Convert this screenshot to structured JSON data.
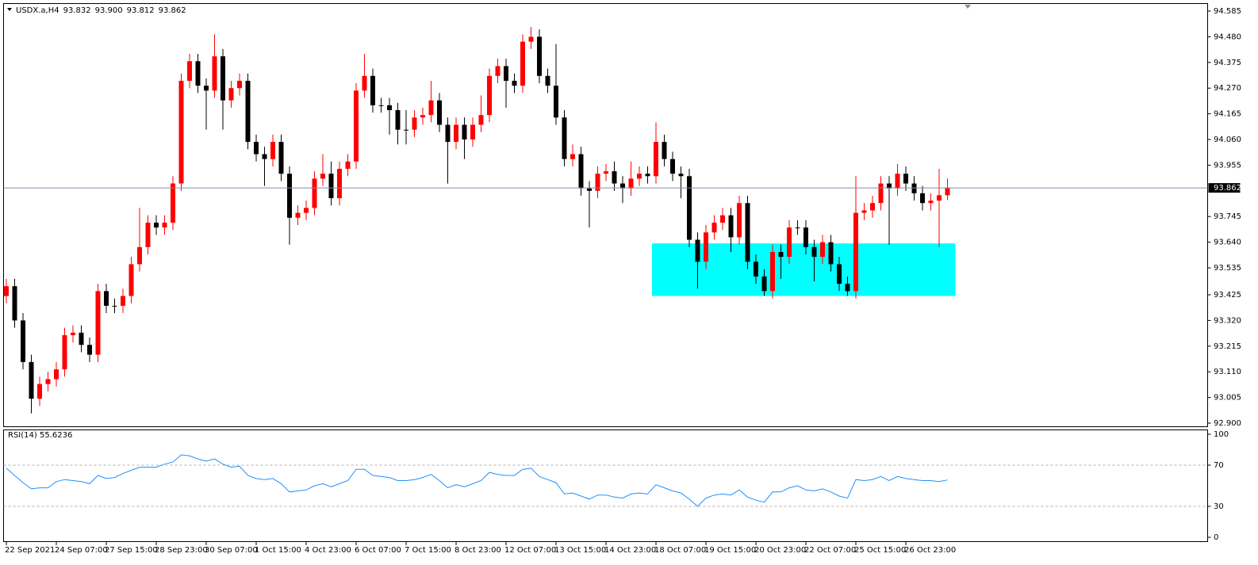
{
  "chart_data": [
    {
      "type": "candlestick",
      "title": "USDX.a,H4",
      "ohlc_label": [
        "93.832",
        "93.900",
        "93.812",
        "93.862"
      ],
      "up_color": "#ff0000",
      "down_color": "#000000",
      "price_line_color": "#7d8fa6",
      "categories": [
        "22 Sep 2021",
        null,
        null,
        null,
        null,
        null,
        "24 Sep 07:00",
        null,
        null,
        null,
        null,
        null,
        "27 Sep 15:00",
        null,
        null,
        null,
        null,
        null,
        "28 Sep 23:00",
        null,
        null,
        null,
        null,
        null,
        "30 Sep 07:00",
        null,
        null,
        null,
        null,
        null,
        "1 Oct 15:00",
        null,
        null,
        null,
        null,
        null,
        "4 Oct 23:00",
        null,
        null,
        null,
        null,
        null,
        "6 Oct 07:00",
        null,
        null,
        null,
        null,
        null,
        "7 Oct 15:00",
        null,
        null,
        null,
        null,
        null,
        "8 Oct 23:00",
        null,
        null,
        null,
        null,
        null,
        "12 Oct 07:00",
        null,
        null,
        null,
        null,
        null,
        "13 Oct 15:00",
        null,
        null,
        null,
        null,
        null,
        "14 Oct 23:00",
        null,
        null,
        null,
        null,
        null,
        "18 Oct 07:00",
        null,
        null,
        null,
        null,
        null,
        "19 Oct 15:00",
        null,
        null,
        null,
        null,
        null,
        "20 Oct 23:00",
        null,
        null,
        null,
        null,
        null,
        "22 Oct 07:00",
        null,
        null,
        null,
        null,
        null,
        "25 Oct 15:00",
        null,
        null,
        null,
        null,
        null,
        "26 Oct 23:00",
        null,
        null,
        null,
        null,
        null
      ],
      "open": [
        93.42,
        93.46,
        93.32,
        93.15,
        93.0,
        93.06,
        93.08,
        93.12,
        93.26,
        93.27,
        93.22,
        93.18,
        93.44,
        93.38,
        93.38,
        93.42,
        93.55,
        93.62,
        93.72,
        93.7,
        93.72,
        93.88,
        94.3,
        94.38,
        94.28,
        94.26,
        94.4,
        94.22,
        94.27,
        94.3,
        94.05,
        94.0,
        93.98,
        94.05,
        93.92,
        93.74,
        93.76,
        93.78,
        93.9,
        93.92,
        93.82,
        93.94,
        93.97,
        94.26,
        94.32,
        94.2,
        94.2,
        94.18,
        94.1,
        94.1,
        94.15,
        94.16,
        94.22,
        94.12,
        94.05,
        94.12,
        94.06,
        94.12,
        94.16,
        94.32,
        94.36,
        94.3,
        94.28,
        94.46,
        94.48,
        94.32,
        94.28,
        94.15,
        93.98,
        94.0,
        93.86,
        93.85,
        93.92,
        93.93,
        93.88,
        93.86,
        93.9,
        93.92,
        93.91,
        94.05,
        93.98,
        93.92,
        93.91,
        93.65,
        93.56,
        93.68,
        93.72,
        93.75,
        93.66,
        93.8,
        93.56,
        93.5,
        93.44,
        93.6,
        93.58,
        93.7,
        93.7,
        93.62,
        93.58,
        93.64,
        93.55,
        93.47,
        93.44,
        93.76,
        93.77,
        93.8,
        93.88,
        93.86,
        93.92,
        93.88,
        93.84,
        93.8,
        93.81,
        93.832
      ],
      "high": [
        93.49,
        93.49,
        93.35,
        93.18,
        93.09,
        93.11,
        93.15,
        93.29,
        93.3,
        93.3,
        93.25,
        93.47,
        93.47,
        93.41,
        93.45,
        93.58,
        93.78,
        93.75,
        93.75,
        93.75,
        93.91,
        94.33,
        94.41,
        94.41,
        94.31,
        94.49,
        94.43,
        94.3,
        94.33,
        94.33,
        94.08,
        94.03,
        94.08,
        94.08,
        93.95,
        93.79,
        93.81,
        93.93,
        94.0,
        93.97,
        93.97,
        94.0,
        94.29,
        94.41,
        94.35,
        94.23,
        94.23,
        94.21,
        94.18,
        94.18,
        94.19,
        94.3,
        94.25,
        94.15,
        94.15,
        94.15,
        94.15,
        94.24,
        94.35,
        94.39,
        94.39,
        94.33,
        94.49,
        94.52,
        94.51,
        94.35,
        94.45,
        94.18,
        94.04,
        94.03,
        93.89,
        93.95,
        93.96,
        93.97,
        93.91,
        93.97,
        93.95,
        93.95,
        94.13,
        94.08,
        94.01,
        93.95,
        93.94,
        93.68,
        93.71,
        93.75,
        93.78,
        93.78,
        93.83,
        93.83,
        93.59,
        93.53,
        93.63,
        93.63,
        93.73,
        93.73,
        93.73,
        93.65,
        93.67,
        93.67,
        93.58,
        93.5,
        93.91,
        93.8,
        93.83,
        93.91,
        93.91,
        93.96,
        93.95,
        93.91,
        93.87,
        93.84,
        93.94,
        93.9
      ],
      "low": [
        93.39,
        93.29,
        93.12,
        92.94,
        92.97,
        93.03,
        93.05,
        93.09,
        93.23,
        93.19,
        93.15,
        93.15,
        93.35,
        93.35,
        93.35,
        93.39,
        93.52,
        93.59,
        93.67,
        93.67,
        93.69,
        93.85,
        94.27,
        94.25,
        94.1,
        94.23,
        94.1,
        94.19,
        94.24,
        94.02,
        93.97,
        93.87,
        93.95,
        93.89,
        93.63,
        93.71,
        93.73,
        93.75,
        93.87,
        93.79,
        93.79,
        93.91,
        93.94,
        94.23,
        94.17,
        94.17,
        94.08,
        94.04,
        94.04,
        94.07,
        94.12,
        94.13,
        94.09,
        93.88,
        94.02,
        93.98,
        94.03,
        94.09,
        94.13,
        94.29,
        94.19,
        94.25,
        94.25,
        94.43,
        94.29,
        94.25,
        94.12,
        93.95,
        93.95,
        93.83,
        93.7,
        93.82,
        93.89,
        93.85,
        93.8,
        93.83,
        93.87,
        93.88,
        93.88,
        93.95,
        93.89,
        93.82,
        93.62,
        93.45,
        93.53,
        93.65,
        93.69,
        93.6,
        93.63,
        93.53,
        93.47,
        93.42,
        93.41,
        93.49,
        93.55,
        93.67,
        93.59,
        93.48,
        93.55,
        93.52,
        93.44,
        93.42,
        93.41,
        93.73,
        93.74,
        93.77,
        93.63,
        93.83,
        93.85,
        93.81,
        93.77,
        93.77,
        93.62,
        93.812
      ],
      "close": [
        93.46,
        93.32,
        93.15,
        93.0,
        93.06,
        93.08,
        93.12,
        93.26,
        93.27,
        93.22,
        93.18,
        93.44,
        93.38,
        93.38,
        93.42,
        93.55,
        93.62,
        93.72,
        93.7,
        93.72,
        93.88,
        94.3,
        94.38,
        94.28,
        94.26,
        94.4,
        94.22,
        94.27,
        94.3,
        94.05,
        94.0,
        93.98,
        94.05,
        93.92,
        93.74,
        93.76,
        93.78,
        93.9,
        93.92,
        93.82,
        93.94,
        93.97,
        94.26,
        94.32,
        94.2,
        94.2,
        94.18,
        94.1,
        94.1,
        94.15,
        94.16,
        94.22,
        94.12,
        94.05,
        94.12,
        94.06,
        94.12,
        94.16,
        94.32,
        94.36,
        94.3,
        94.28,
        94.46,
        94.48,
        94.32,
        94.28,
        94.15,
        93.98,
        94.0,
        93.86,
        93.85,
        93.92,
        93.93,
        93.88,
        93.86,
        93.9,
        93.92,
        93.91,
        94.05,
        93.98,
        93.92,
        93.91,
        93.65,
        93.56,
        93.68,
        93.72,
        93.75,
        93.66,
        93.8,
        93.56,
        93.5,
        93.44,
        93.6,
        93.58,
        93.7,
        93.7,
        93.62,
        93.58,
        93.64,
        93.55,
        93.47,
        93.44,
        93.76,
        93.77,
        93.8,
        93.88,
        93.86,
        93.92,
        93.88,
        93.84,
        93.8,
        93.81,
        93.832,
        93.862
      ],
      "zone": {
        "low": 93.42,
        "high": 93.635,
        "color": "#00ffff",
        "from": 78,
        "to": 113
      },
      "ylim": [
        92.9,
        94.585
      ],
      "yticks": [
        94.585,
        {
          "value": 94.48,
          "label": "94.480"
        },
        94.375,
        {
          "value": 94.27,
          "label": "94.270"
        },
        94.165,
        {
          "value": 94.06,
          "label": "94.060"
        },
        93.955,
        93.745,
        {
          "value": 93.64,
          "label": "93.640"
        },
        93.535,
        93.425,
        {
          "value": 93.32,
          "label": "93.320"
        },
        93.215,
        {
          "value": 93.11,
          "label": "93.110"
        },
        93.005,
        {
          "value": 92.9,
          "label": "92.900"
        }
      ]
    },
    {
      "type": "line",
      "title": "RSI(14) 55.6236",
      "color": "#1e90ff",
      "values": [
        67,
        60,
        53,
        47,
        48,
        48,
        54,
        56,
        55,
        54,
        52,
        60,
        57,
        58,
        62,
        65,
        68,
        68,
        68,
        71,
        73,
        80,
        79,
        76,
        74,
        76,
        71,
        68,
        69,
        60,
        57,
        56,
        57,
        52,
        44,
        45,
        46,
        50,
        52,
        49,
        52,
        55,
        66,
        66,
        60,
        59,
        58,
        55,
        55,
        56,
        58,
        61,
        55,
        48,
        51,
        49,
        52,
        55,
        63,
        61,
        60,
        60,
        66,
        67,
        59,
        56,
        53,
        42,
        43,
        40,
        37,
        41,
        41,
        39,
        38,
        42,
        43,
        42,
        51,
        48,
        45,
        43,
        37,
        30,
        38,
        41,
        42,
        41,
        46,
        39,
        36,
        34,
        44,
        44,
        48,
        50,
        46,
        45,
        47,
        44,
        40,
        38,
        56,
        55,
        56,
        59,
        55,
        59,
        57,
        56,
        55,
        55,
        54,
        55.6236
      ],
      "levels": [
        70,
        30
      ],
      "ylim": [
        0,
        100
      ],
      "yticks": [
        100,
        70,
        30,
        0
      ]
    }
  ]
}
